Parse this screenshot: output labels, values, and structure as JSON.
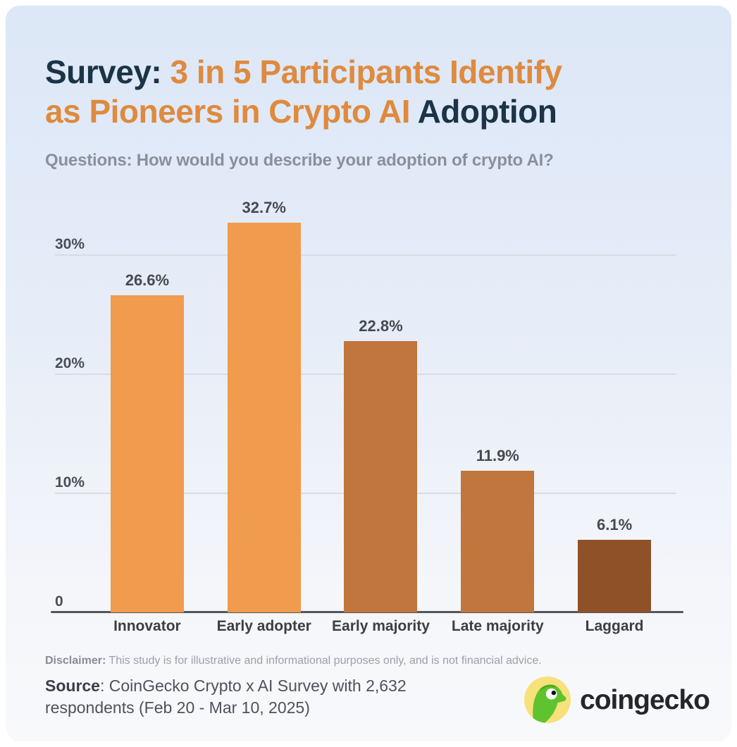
{
  "header": {
    "title_full": "Survey: 3 in 5 Participants Identify as Pioneers in Crypto AI Adoption",
    "title_lines": [
      {
        "segments": [
          {
            "text": "Survey: ",
            "color": "#1B3447"
          },
          {
            "text": "3 in 5 Participants Identify",
            "color": "#DF8A3E"
          }
        ]
      },
      {
        "segments": [
          {
            "text": "as Pioneers in Crypto AI ",
            "color": "#DF8A3E"
          },
          {
            "text": "Adoption",
            "color": "#1B3447"
          }
        ]
      }
    ],
    "subtitle": "Questions: How would you describe your adoption of crypto AI?"
  },
  "chart_data": {
    "type": "bar",
    "title": "Survey: 3 in 5 Participants Identify as Pioneers in Crypto AI Adoption",
    "xlabel": "",
    "ylabel": "",
    "categories": [
      "Innovator",
      "Early adopter",
      "Early majority",
      "Late majority",
      "Laggard"
    ],
    "values": [
      26.6,
      32.7,
      22.8,
      11.9,
      6.1
    ],
    "value_labels": [
      "26.6%",
      "32.7%",
      "22.8%",
      "11.9%",
      "6.1%"
    ],
    "bar_colors": [
      "#F09B4D",
      "#F09B4D",
      "#C0763C",
      "#C0763C",
      "#8F5127"
    ],
    "yticks": [
      {
        "value": 0,
        "label": "0"
      },
      {
        "value": 10,
        "label": "10%"
      },
      {
        "value": 20,
        "label": "20%"
      },
      {
        "value": 30,
        "label": "30%"
      }
    ],
    "ylim": [
      0,
      33.6
    ],
    "grid": true,
    "legend": "none",
    "gridline_color": "#D7DCE5",
    "axis_color": "#53565B"
  },
  "footer": {
    "disclaimer_label": "Disclaimer:",
    "disclaimer_text": " This study is for illustrative and informational purposes only, and is not financial advice.",
    "source_label": "Source",
    "source_text": ": CoinGecko Crypto x AI Survey with 2,632 respondents (Feb 20 - Mar 10, 2025)",
    "brand": {
      "name": "coingecko",
      "wordmark_color": "#23262B",
      "logo_circle_color": "#F6E17A",
      "logo_gecko_color": "#5FC22F",
      "logo_ridge_color": "#4DAD22"
    }
  }
}
